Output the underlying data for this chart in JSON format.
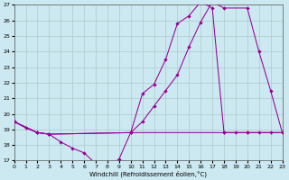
{
  "xlabel": "Windchill (Refroidissement éolien,°C)",
  "bg_color": "#cce8f0",
  "grid_color": "#aacccc",
  "line_color": "#990099",
  "xlim": [
    0,
    23
  ],
  "ylim": [
    17,
    27
  ],
  "yticks": [
    17,
    18,
    19,
    20,
    21,
    22,
    23,
    24,
    25,
    26,
    27
  ],
  "xticks": [
    0,
    1,
    2,
    3,
    4,
    5,
    6,
    7,
    8,
    9,
    10,
    11,
    12,
    13,
    14,
    15,
    16,
    17,
    18,
    19,
    20,
    21,
    22,
    23
  ],
  "curve_wc_x": [
    0,
    1,
    2,
    3,
    4,
    5,
    6,
    7,
    8,
    9,
    10,
    11,
    12,
    13,
    14,
    15,
    16,
    17,
    18,
    19,
    20,
    21,
    22,
    23
  ],
  "curve_wc_y": [
    19.5,
    19.1,
    18.8,
    18.7,
    18.2,
    17.8,
    17.5,
    16.8,
    16.6,
    17.1,
    18.8,
    21.3,
    21.9,
    23.5,
    25.8,
    26.3,
    27.2,
    26.8,
    18.8,
    18.8,
    18.8,
    18.8,
    18.8,
    18.8
  ],
  "curve_temp_x": [
    0,
    2,
    3,
    10,
    11,
    12,
    13,
    14,
    15,
    16,
    17,
    18,
    20,
    21,
    22,
    23
  ],
  "curve_temp_y": [
    19.5,
    18.8,
    18.7,
    18.8,
    19.5,
    20.5,
    21.5,
    22.5,
    24.3,
    25.9,
    27.2,
    26.8,
    26.8,
    24.0,
    21.5,
    18.8
  ],
  "curve_flat_x": [
    0,
    2,
    3,
    10,
    18,
    20,
    23
  ],
  "curve_flat_y": [
    19.5,
    18.8,
    18.7,
    18.8,
    18.8,
    18.8,
    18.8
  ]
}
